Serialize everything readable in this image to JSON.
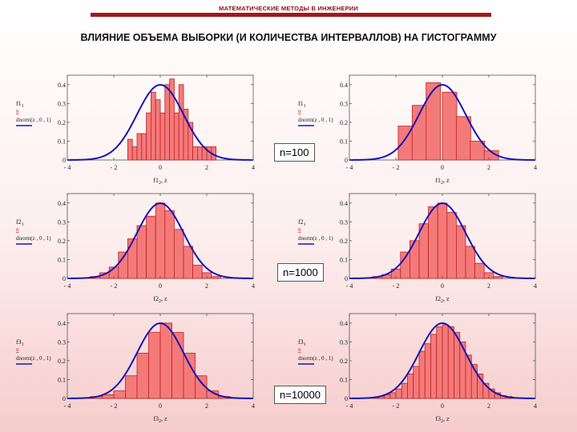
{
  "header": {
    "title": "МАТЕМАТИЧЕСКИЕ МЕТОДЫ В ИНЖЕНЕРИИ",
    "accent_color": "#a31818"
  },
  "slide_title": "ВЛИЯНИЕ ОБЪЕМА ВЫБОРКИ (И КОЛИЧЕСТВА ИНТЕРВАЛЛОВ) НА ГИСТОГРАММУ",
  "sample_labels": [
    "n=100",
    "n=1000",
    "n=10000"
  ],
  "colors": {
    "bar_fill": "#f47a7a",
    "bar_stroke": "#c21f1f",
    "curve": "#1515b5",
    "axis": "#555555"
  },
  "chart_data": [
    {
      "type": "bar",
      "name": "hist-f1-many-intervals",
      "bar_left_edges": [
        -1.4,
        -1.2,
        -1.0,
        -0.8,
        -0.6,
        -0.4,
        -0.2,
        0.0,
        0.2,
        0.4,
        0.6,
        0.8,
        1.0,
        1.2,
        1.4,
        1.6,
        1.8,
        2.0,
        2.2
      ],
      "bar_width": 0.2,
      "values": [
        0.11,
        0.07,
        0.14,
        0.14,
        0.25,
        0.36,
        0.32,
        0.25,
        0.4,
        0.43,
        0.25,
        0.4,
        0.27,
        0.2,
        0.07,
        0.07,
        0.07,
        0.07,
        0.07
      ],
      "curve": "dnorm(z, 0, 1)",
      "xlim": [
        -4,
        4
      ],
      "ylim": [
        0,
        0.45
      ],
      "x_ticks": [
        "- 4",
        "- 2",
        "0",
        "2",
        "4"
      ],
      "y_ticks": [
        "0",
        "0.1",
        "0.2",
        "0.3",
        "0.4"
      ],
      "xlabel_main": "f1",
      "xlabel_sub": "2",
      "xlabel_rest": ", z",
      "ylabel_top_main": "f1",
      "ylabel_top_sub": "1",
      "ylabel_sep": "n",
      "ylabel_bottom": "dnorm(z , 0 , 1)"
    },
    {
      "type": "bar",
      "name": "hist-f1-few-intervals",
      "bar_left_edges": [
        -1.9,
        -1.3,
        -0.7,
        0.0,
        0.6,
        1.2,
        1.8
      ],
      "bar_width": 0.62,
      "values": [
        0.18,
        0.29,
        0.41,
        0.36,
        0.23,
        0.1,
        0.05
      ],
      "curve": "dnorm(z, 0, 1)",
      "xlim": [
        -4,
        4
      ],
      "ylim": [
        0,
        0.45
      ],
      "x_ticks": [
        "- 4",
        "- 2",
        "0",
        "2",
        "4"
      ],
      "y_ticks": [
        "0",
        "0.1",
        "0.2",
        "0.3",
        "0.4"
      ],
      "xlabel_main": "f1",
      "xlabel_sub": "2",
      "xlabel_rest": ", z",
      "ylabel_top_main": "f1",
      "ylabel_top_sub": "1",
      "ylabel_sep": "n",
      "ylabel_bottom": "dnorm(z , 0 , 1)"
    },
    {
      "type": "bar",
      "name": "hist-f2-many-intervals",
      "bar_left_edges": [
        -3.0,
        -2.6,
        -2.2,
        -1.8,
        -1.4,
        -1.0,
        -0.6,
        -0.2,
        0.2,
        0.6,
        1.0,
        1.4,
        1.8,
        2.2
      ],
      "bar_width": 0.4,
      "values": [
        0.01,
        0.03,
        0.06,
        0.14,
        0.21,
        0.28,
        0.33,
        0.4,
        0.36,
        0.26,
        0.17,
        0.07,
        0.03,
        0.01
      ],
      "curve": "dnorm(z, 0, 1)",
      "xlim": [
        -4,
        4
      ],
      "ylim": [
        0,
        0.45
      ],
      "x_ticks": [
        "- 4",
        "- 2",
        "0",
        "2",
        "4"
      ],
      "y_ticks": [
        "0",
        "0.1",
        "0.2",
        "0.3",
        "0.4"
      ],
      "xlabel_main": "f2",
      "xlabel_sub": "2",
      "xlabel_rest": ", z",
      "ylabel_top_main": "f2",
      "ylabel_top_sub": "1",
      "ylabel_sep": "n",
      "ylabel_bottom": "dnorm(z , 0 , 1)"
    },
    {
      "type": "bar",
      "name": "hist-f2-few-intervals",
      "bar_left_edges": [
        -3.0,
        -2.6,
        -2.2,
        -1.8,
        -1.4,
        -1.0,
        -0.6,
        -0.2,
        0.2,
        0.6,
        1.0,
        1.4,
        1.8,
        2.2
      ],
      "bar_width": 0.4,
      "values": [
        0.01,
        0.02,
        0.05,
        0.14,
        0.2,
        0.29,
        0.38,
        0.4,
        0.35,
        0.28,
        0.17,
        0.08,
        0.03,
        0.01
      ],
      "curve": "dnorm(z, 0, 1)",
      "xlim": [
        -4,
        4
      ],
      "ylim": [
        0,
        0.45
      ],
      "x_ticks": [
        "- 4",
        "- 2",
        "0",
        "2",
        "4"
      ],
      "y_ticks": [
        "0",
        "0.1",
        "0.2",
        "0.3",
        "0.4"
      ],
      "xlabel_main": "f2",
      "xlabel_sub": "2",
      "xlabel_rest": ", z",
      "ylabel_top_main": "f2",
      "ylabel_top_sub": "1",
      "ylabel_sep": "n",
      "ylabel_bottom": "dnorm(z , 0 , 1)"
    },
    {
      "type": "bar",
      "name": "hist-f3-few-intervals",
      "bar_left_edges": [
        -3.0,
        -2.5,
        -2.0,
        -1.5,
        -1.0,
        -0.5,
        0.0,
        0.5,
        1.0,
        1.5,
        2.0,
        2.5
      ],
      "bar_width": 0.5,
      "values": [
        0.01,
        0.02,
        0.04,
        0.12,
        0.24,
        0.35,
        0.4,
        0.35,
        0.24,
        0.12,
        0.04,
        0.01
      ],
      "curve": "dnorm(z, 0, 1)",
      "xlim": [
        -4,
        4
      ],
      "ylim": [
        0,
        0.45
      ],
      "x_ticks": [
        "- 4",
        "- 2",
        "0",
        "2",
        "4"
      ],
      "y_ticks": [
        "0",
        "0.1",
        "0.2",
        "0.3",
        "0.4"
      ],
      "xlabel_main": "f3",
      "xlabel_sub": "2",
      "xlabel_rest": ", z",
      "ylabel_top_main": "f3",
      "ylabel_top_sub": "1",
      "ylabel_sep": "n",
      "ylabel_bottom": "dnorm(z , 0 , 1)"
    },
    {
      "type": "bar",
      "name": "hist-f3-many-intervals",
      "bar_left_edges": [
        -3.0,
        -2.75,
        -2.5,
        -2.25,
        -2.0,
        -1.75,
        -1.5,
        -1.25,
        -1.0,
        -0.75,
        -0.5,
        -0.25,
        0.0,
        0.25,
        0.5,
        0.75,
        1.0,
        1.25,
        1.5,
        1.75,
        2.0,
        2.25,
        2.5,
        2.75
      ],
      "bar_width": 0.25,
      "values": [
        0.005,
        0.01,
        0.02,
        0.03,
        0.05,
        0.08,
        0.13,
        0.17,
        0.25,
        0.29,
        0.34,
        0.38,
        0.39,
        0.38,
        0.35,
        0.3,
        0.23,
        0.18,
        0.13,
        0.08,
        0.05,
        0.03,
        0.015,
        0.01
      ],
      "curve": "dnorm(z, 0, 1)",
      "xlim": [
        -4,
        4
      ],
      "ylim": [
        0,
        0.45
      ],
      "x_ticks": [
        "- 4",
        "- 2",
        "0",
        "2",
        "4"
      ],
      "y_ticks": [
        "0",
        "0.1",
        "0.2",
        "0.3",
        "0.4"
      ],
      "xlabel_main": "f3",
      "xlabel_sub": "2",
      "xlabel_rest": ", z",
      "ylabel_top_main": "f3",
      "ylabel_top_sub": "1",
      "ylabel_sep": "n",
      "ylabel_bottom": "dnorm(z , 0 , 1)"
    }
  ]
}
